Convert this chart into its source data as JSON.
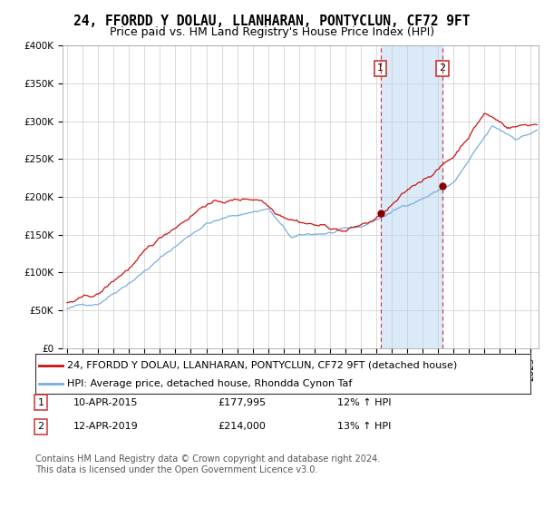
{
  "title": "24, FFORDD Y DOLAU, LLANHARAN, PONTYCLUN, CF72 9FT",
  "subtitle": "Price paid vs. HM Land Registry's House Price Index (HPI)",
  "ylim": [
    0,
    400000
  ],
  "yticks": [
    0,
    50000,
    100000,
    150000,
    200000,
    250000,
    300000,
    350000,
    400000
  ],
  "ytick_labels": [
    "£0",
    "£50K",
    "£100K",
    "£150K",
    "£200K",
    "£250K",
    "£300K",
    "£350K",
    "£400K"
  ],
  "xlim_start": 1994.7,
  "xlim_end": 2025.5,
  "hpi_color": "#7aade0",
  "price_color": "#cc1111",
  "marker1_year": 2015.27,
  "marker1_value": 177995,
  "marker1_label": "1",
  "marker1_date": "10-APR-2015",
  "marker1_price": "£177,995",
  "marker1_hpi": "12% ↑ HPI",
  "marker2_year": 2019.27,
  "marker2_value": 214000,
  "marker2_label": "2",
  "marker2_date": "12-APR-2019",
  "marker2_price": "£214,000",
  "marker2_hpi": "13% ↑ HPI",
  "legend_line1": "24, FFORDD Y DOLAU, LLANHARAN, PONTYCLUN, CF72 9FT (detached house)",
  "legend_line2": "HPI: Average price, detached house, Rhondda Cynon Taf",
  "footnote": "Contains HM Land Registry data © Crown copyright and database right 2024.\nThis data is licensed under the Open Government Licence v3.0.",
  "bg_color": "#ffffff",
  "plot_bg_color": "#ffffff",
  "grid_color": "#cccccc",
  "marker_vline_color": "#cc3333",
  "marker_region_color": "#daeaf8",
  "title_fontsize": 10.5,
  "subtitle_fontsize": 9,
  "tick_fontsize": 7.5,
  "legend_fontsize": 8,
  "footnote_fontsize": 7,
  "seed": 42
}
